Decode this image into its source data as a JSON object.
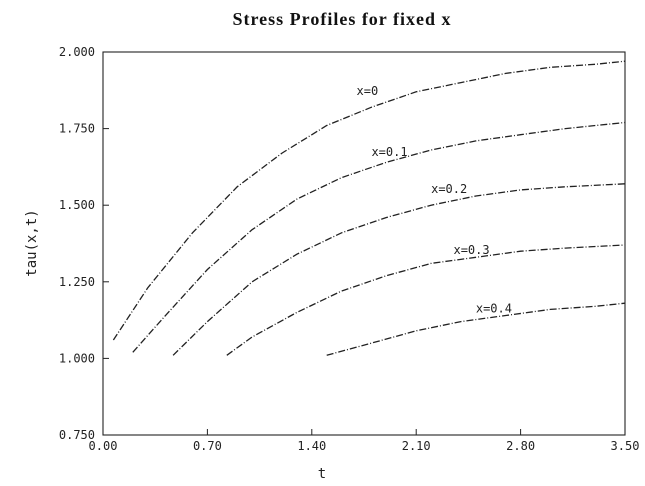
{
  "chart_data": {
    "type": "line",
    "title": "Stress Profiles for fixed x",
    "xlabel": "t",
    "ylabel": "tau(x,t)",
    "xlim": [
      0.0,
      3.5
    ],
    "ylim": [
      0.75,
      2.0
    ],
    "x_ticks": [
      "0.00",
      "0.70",
      "1.40",
      "2.10",
      "2.80",
      "3.50"
    ],
    "y_ticks": [
      "0.750",
      "1.000",
      "1.250",
      "1.500",
      "1.750",
      "2.000"
    ],
    "x_tick_values": [
      0.0,
      0.7,
      1.4,
      2.1,
      2.8,
      3.5
    ],
    "y_tick_values": [
      0.75,
      1.0,
      1.25,
      1.5,
      1.75,
      2.0
    ],
    "grid": false,
    "series": [
      {
        "name": "x=0",
        "label": "x=0",
        "label_at": [
          1.7,
          1.86
        ],
        "x": [
          0.07,
          0.3,
          0.6,
          0.9,
          1.2,
          1.5,
          1.8,
          2.1,
          2.4,
          2.7,
          3.0,
          3.3,
          3.5
        ],
        "y": [
          1.06,
          1.23,
          1.41,
          1.56,
          1.67,
          1.76,
          1.82,
          1.87,
          1.9,
          1.93,
          1.95,
          1.96,
          1.97
        ]
      },
      {
        "name": "x=0.1",
        "label": "x=0.1",
        "label_at": [
          1.8,
          1.66
        ],
        "x": [
          0.2,
          0.4,
          0.7,
          1.0,
          1.3,
          1.6,
          1.9,
          2.2,
          2.5,
          2.8,
          3.1,
          3.5
        ],
        "y": [
          1.02,
          1.13,
          1.29,
          1.42,
          1.52,
          1.59,
          1.64,
          1.68,
          1.71,
          1.73,
          1.75,
          1.77
        ]
      },
      {
        "name": "x=0.2",
        "label": "x=0.2",
        "label_at": [
          2.2,
          1.54
        ],
        "x": [
          0.47,
          0.7,
          1.0,
          1.3,
          1.6,
          1.9,
          2.2,
          2.5,
          2.8,
          3.1,
          3.5
        ],
        "y": [
          1.01,
          1.12,
          1.25,
          1.34,
          1.41,
          1.46,
          1.5,
          1.53,
          1.55,
          1.56,
          1.57
        ]
      },
      {
        "name": "x=0.3",
        "label": "x=0.3",
        "label_at": [
          2.35,
          1.34
        ],
        "x": [
          0.83,
          1.0,
          1.3,
          1.6,
          1.9,
          2.2,
          2.5,
          2.8,
          3.1,
          3.5
        ],
        "y": [
          1.01,
          1.07,
          1.15,
          1.22,
          1.27,
          1.31,
          1.33,
          1.35,
          1.36,
          1.37
        ]
      },
      {
        "name": "x=0.4",
        "label": "x=0.4",
        "label_at": [
          2.5,
          1.15
        ],
        "x": [
          1.5,
          1.8,
          2.1,
          2.4,
          2.7,
          3.0,
          3.3,
          3.5
        ],
        "y": [
          1.01,
          1.05,
          1.09,
          1.12,
          1.14,
          1.16,
          1.17,
          1.18
        ]
      }
    ]
  }
}
